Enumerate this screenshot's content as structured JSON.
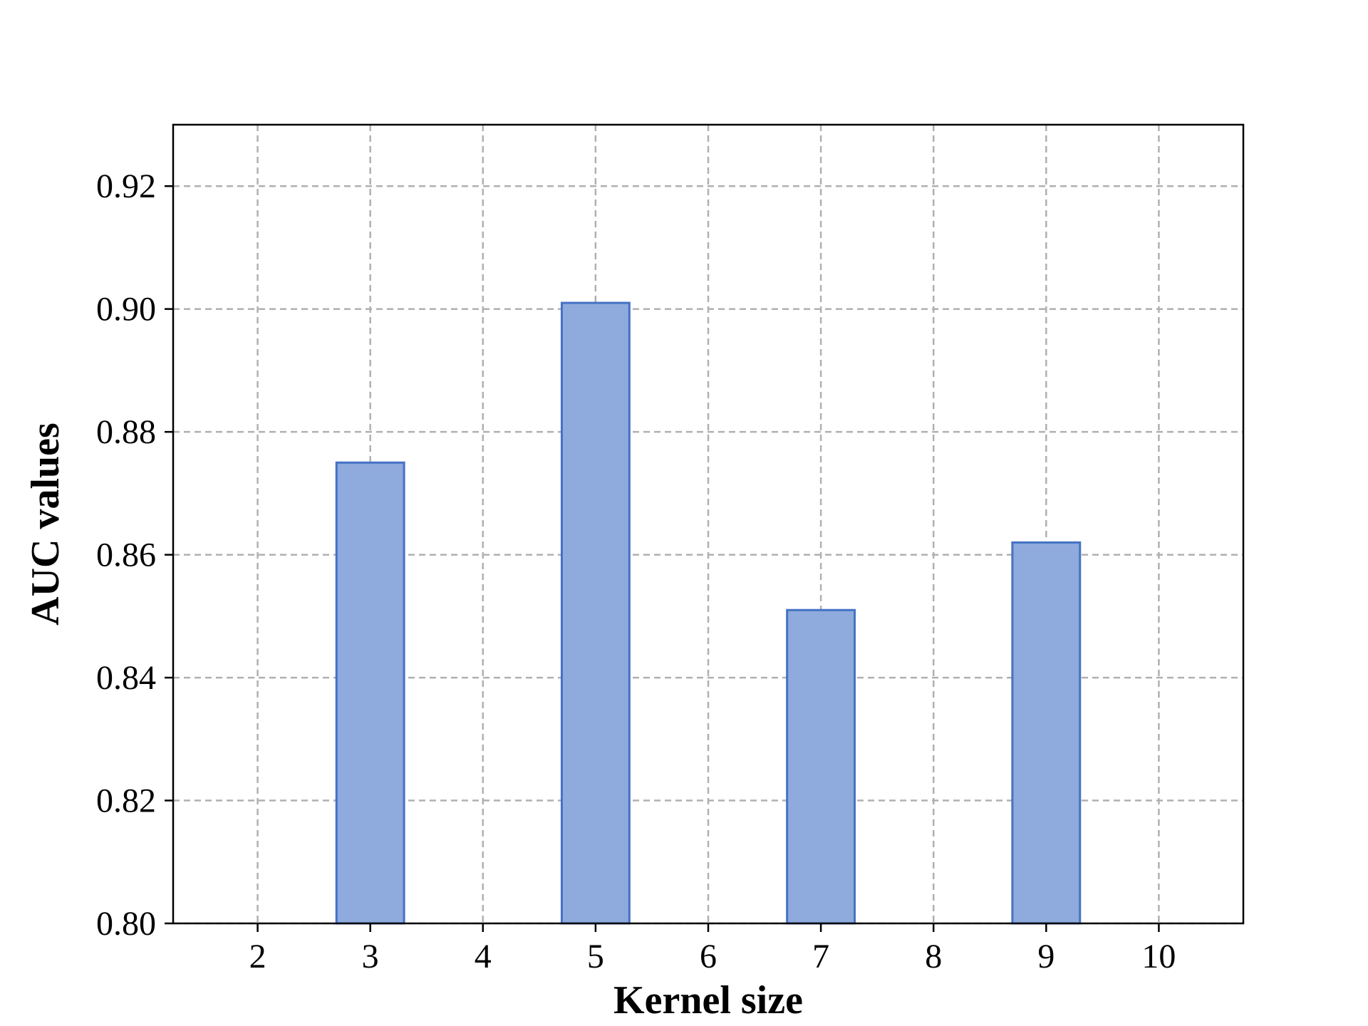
{
  "chart_data": {
    "type": "bar",
    "x_ticks": [
      2,
      3,
      4,
      5,
      6,
      7,
      8,
      9,
      10
    ],
    "x_tick_labels": [
      "2",
      "3",
      "4",
      "5",
      "6",
      "7",
      "8",
      "9",
      "10"
    ],
    "categories": [
      3,
      5,
      7,
      9
    ],
    "values": [
      0.875,
      0.901,
      0.851,
      0.862
    ],
    "xlabel": "Kernel size",
    "ylabel": "AUC values",
    "title": "",
    "xlim": [
      1.25,
      10.75
    ],
    "ylim": [
      0.8,
      0.93
    ],
    "y_ticks": [
      0.8,
      0.82,
      0.84,
      0.86,
      0.88,
      0.9,
      0.92
    ],
    "y_tick_labels": [
      "0.80",
      "0.82",
      "0.84",
      "0.86",
      "0.88",
      "0.90",
      "0.92"
    ],
    "bar_width": 0.6,
    "grid": true,
    "colors": {
      "bar_fill": "#8faadc",
      "bar_edge": "#4472c4",
      "grid": "#b0b0b0"
    }
  }
}
